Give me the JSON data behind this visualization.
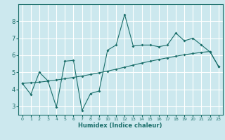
{
  "xlabel": "Humidex (Indice chaleur)",
  "bg_color": "#cce8ee",
  "grid_color": "#ffffff",
  "line_color": "#1a6e6a",
  "xlim": [
    -0.5,
    23.5
  ],
  "ylim": [
    2.5,
    9.0
  ],
  "x_ticks": [
    0,
    1,
    2,
    3,
    4,
    5,
    6,
    7,
    8,
    9,
    10,
    11,
    12,
    13,
    14,
    15,
    16,
    17,
    18,
    19,
    20,
    21,
    22,
    23
  ],
  "y_ticks": [
    3,
    4,
    5,
    6,
    7,
    8
  ],
  "jagged_x": [
    0,
    1,
    2,
    3,
    4,
    5,
    6,
    7,
    8,
    9,
    10,
    11,
    12,
    13,
    14,
    15,
    16,
    17,
    18,
    19,
    20,
    21,
    22,
    23
  ],
  "jagged_y": [
    4.35,
    3.7,
    5.0,
    4.5,
    2.95,
    5.65,
    5.7,
    2.75,
    3.75,
    3.9,
    6.3,
    6.6,
    8.4,
    6.55,
    6.6,
    6.6,
    6.5,
    6.6,
    7.3,
    6.85,
    7.0,
    6.6,
    6.2,
    5.35
  ],
  "smooth_x": [
    0,
    1,
    2,
    3,
    4,
    5,
    6,
    7,
    8,
    9,
    10,
    11,
    12,
    13,
    14,
    15,
    16,
    17,
    18,
    19,
    20,
    21,
    22,
    23
  ],
  "smooth_y": [
    4.35,
    4.38,
    4.42,
    4.48,
    4.55,
    4.62,
    4.7,
    4.78,
    4.87,
    4.97,
    5.07,
    5.18,
    5.3,
    5.42,
    5.54,
    5.65,
    5.75,
    5.85,
    5.94,
    6.03,
    6.1,
    6.17,
    6.22,
    5.35
  ]
}
